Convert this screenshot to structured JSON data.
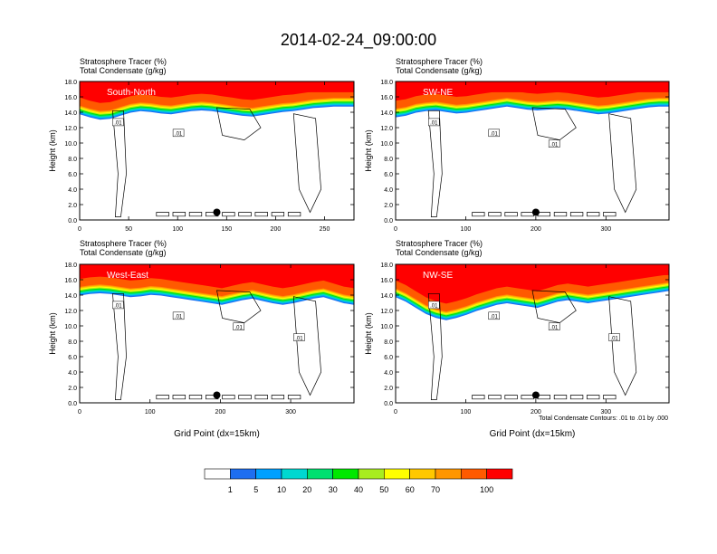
{
  "title": "2014-02-24_09:00:00",
  "chart_data": {
    "type": "heatmap",
    "panels": [
      {
        "label": "South-North",
        "left_titles": [
          "Stratosphere Tracer   (%)",
          "Total Condensate   (g/kg)"
        ],
        "ylabel": "Height (km)",
        "xlabel": "",
        "xlim": [
          0,
          280
        ],
        "xticks": [
          0,
          50,
          100,
          150,
          200,
          250
        ],
        "ylim": [
          0,
          18
        ],
        "yticks": [
          "0.0",
          "2.0",
          "4.0",
          "6.0",
          "8.0",
          "10.0",
          "12.0",
          "14.0",
          "16.0",
          "18.0"
        ],
        "contour_labels": [
          ".01",
          ".01"
        ],
        "marker_x": 140,
        "tracer_top_km": [
          15.0,
          14.6,
          14.3,
          14.4,
          14.8,
          15.2,
          15.4,
          15.3,
          15.1,
          15.0,
          15.2,
          15.4,
          15.5,
          15.4,
          15.2,
          15.0,
          14.8,
          14.7,
          14.9,
          15.1,
          15.3,
          15.4,
          15.6,
          15.8,
          15.9,
          16.0,
          16.0,
          16.0
        ]
      },
      {
        "label": "SW-NE",
        "left_titles": [
          "Stratosphere Tracer   (%)",
          "Total Condensate   (g/kg)"
        ],
        "ylabel": "Height (km)",
        "xlabel": "",
        "xlim": [
          0,
          390
        ],
        "xticks": [
          0,
          100,
          200,
          300
        ],
        "ylim": [
          0,
          18
        ],
        "yticks": [
          "0.0",
          "2.0",
          "4.0",
          "6.0",
          "8.0",
          "10.0",
          "12.0",
          "14.0",
          "16.0",
          "18.0"
        ],
        "contour_labels": [
          ".01",
          ".01",
          ".01"
        ],
        "marker_x": 200,
        "tracer_top_km": [
          14.6,
          14.8,
          15.2,
          15.4,
          15.5,
          15.3,
          15.1,
          15.2,
          15.4,
          15.6,
          15.8,
          16.0,
          15.8,
          15.6,
          15.5,
          15.6,
          15.7,
          15.6,
          15.4,
          15.2,
          15.0,
          15.1,
          15.3,
          15.5,
          15.7,
          15.9,
          16.0,
          16.0
        ]
      },
      {
        "label": "West-East",
        "left_titles": [
          "Stratosphere Tracer   (%)",
          "Total Condensate   (g/kg)"
        ],
        "ylabel": "Height (km)",
        "xlabel": "Grid Point (dx=15km)",
        "xlim": [
          0,
          390
        ],
        "xticks": [
          0,
          100,
          200,
          300
        ],
        "ylim": [
          0,
          18
        ],
        "yticks": [
          "0.0",
          "2.0",
          "4.0",
          "6.0",
          "8.0",
          "10.0",
          "12.0",
          "14.0",
          "16.0",
          "18.0"
        ],
        "contour_labels": [
          ".01",
          ".01",
          ".01",
          ".01"
        ],
        "marker_x": 195,
        "tracer_top_km": [
          15.2,
          15.4,
          15.5,
          15.4,
          15.2,
          15.0,
          15.1,
          15.3,
          15.2,
          15.0,
          14.8,
          14.6,
          14.4,
          14.2,
          14.0,
          14.3,
          14.6,
          14.8,
          14.5,
          14.2,
          14.0,
          14.2,
          14.5,
          14.8,
          15.0,
          14.6,
          14.2,
          14.0
        ]
      },
      {
        "label": "NW-SE",
        "left_titles": [
          "Stratosphere Tracer   (%)",
          "Total Condensate   (g/kg)"
        ],
        "ylabel": "Height (km)",
        "xlabel": "Grid Point (dx=15km)",
        "xlim": [
          0,
          390
        ],
        "xticks": [
          0,
          100,
          200,
          300
        ],
        "ylim": [
          0,
          18
        ],
        "yticks": [
          "0.0",
          "2.0",
          "4.0",
          "6.0",
          "8.0",
          "10.0",
          "12.0",
          "14.0",
          "16.0",
          "18.0"
        ],
        "contour_labels": [
          ".01",
          ".01",
          ".01",
          ".01"
        ],
        "marker_x": 200,
        "footnote": "Total Condensate Contours: .01 to .01 by .000",
        "tracer_top_km": [
          15.0,
          14.4,
          13.6,
          12.8,
          12.3,
          12.0,
          12.3,
          12.7,
          13.2,
          13.6,
          14.0,
          14.2,
          14.0,
          13.8,
          13.6,
          14.0,
          14.4,
          14.6,
          14.4,
          14.2,
          14.4,
          14.6,
          14.8,
          15.0,
          15.2,
          15.4,
          15.6,
          15.8
        ]
      }
    ],
    "colorbar": {
      "levels": [
        "1",
        "5",
        "10",
        "20",
        "30",
        "40",
        "50",
        "60",
        "70",
        "100"
      ],
      "colors": [
        "#ffffff",
        "#1e6ef0",
        "#00a0ff",
        "#00d8d0",
        "#00e070",
        "#00e800",
        "#a8ec20",
        "#ffff00",
        "#ffc800",
        "#ff9600",
        "#ff5a00",
        "#ff0000"
      ]
    }
  }
}
